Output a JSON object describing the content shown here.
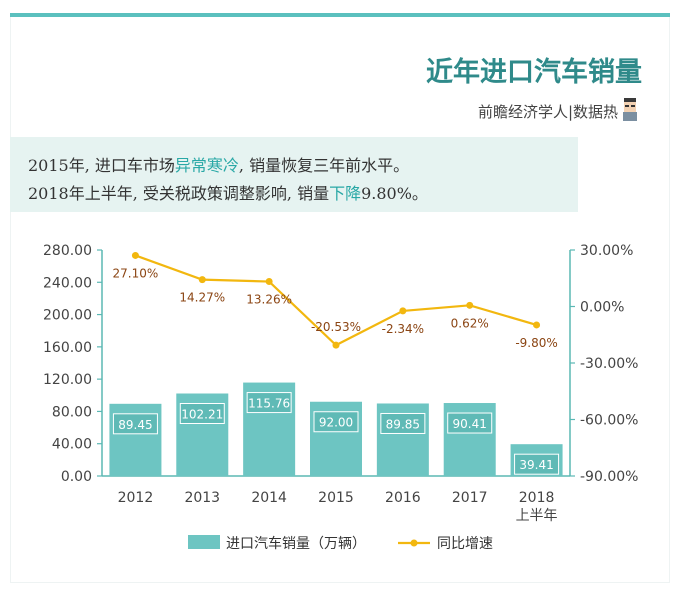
{
  "header": {
    "title": "近年进口汽车销量",
    "subtitle": "前瞻经济学人|数据热"
  },
  "highlights": [
    {
      "pre": "2015年, 进口车市场",
      "accent": "异常寒冷",
      "post": ", 销量恢复三年前水平。"
    },
    {
      "pre": "2018年上半年, 受关税政策调整影响, 销量",
      "accent": "下降",
      "post": "9.80%。"
    }
  ],
  "chart_data": {
    "type": "bar+line",
    "categories": [
      "2012",
      "2013",
      "2014",
      "2015",
      "2016",
      "2017",
      "2018\n上半年"
    ],
    "category_lines": [
      [
        "2012"
      ],
      [
        "2013"
      ],
      [
        "2014"
      ],
      [
        "2015"
      ],
      [
        "2016"
      ],
      [
        "2017"
      ],
      [
        "2018",
        "上半年"
      ]
    ],
    "series": [
      {
        "name": "进口汽车销量（万辆）",
        "type": "bar",
        "axis": "left",
        "values": [
          89.45,
          102.21,
          115.76,
          92.0,
          89.85,
          90.41,
          39.41
        ],
        "labels": [
          "89.45",
          "102.21",
          "115.76",
          "92.00",
          "89.85",
          "90.41",
          "39.41"
        ],
        "color": "#6dc5c2"
      },
      {
        "name": "同比增速",
        "type": "line",
        "axis": "right",
        "values": [
          27.1,
          14.27,
          13.26,
          -20.53,
          -2.34,
          0.62,
          -9.8
        ],
        "labels": [
          "27.10%",
          "14.27%",
          "13.26%",
          "-20.53%",
          "-2.34%",
          "0.62%",
          "-9.80%"
        ],
        "color": "#f2b70f"
      }
    ],
    "left_axis": {
      "ylim": [
        0,
        280
      ],
      "ticks": [
        0,
        40,
        80,
        120,
        160,
        200,
        240,
        280
      ],
      "tick_labels": [
        "0.00",
        "40.00",
        "80.00",
        "120.00",
        "160.00",
        "200.00",
        "240.00",
        "280.00"
      ]
    },
    "right_axis": {
      "ylim": [
        -90,
        30
      ],
      "ticks": [
        -90,
        -60,
        -30,
        0,
        30
      ],
      "tick_labels": [
        "-90.00%",
        "-60.00%",
        "-30.00%",
        "0.00%",
        "30.00%"
      ]
    },
    "legend_position": "bottom",
    "grid": false,
    "colors": {
      "bar": "#6dc5c2",
      "line": "#f2b70f",
      "axis": "#5bb8b4",
      "label_bg": "#5fbab6",
      "line_label": "#8b4513"
    }
  }
}
